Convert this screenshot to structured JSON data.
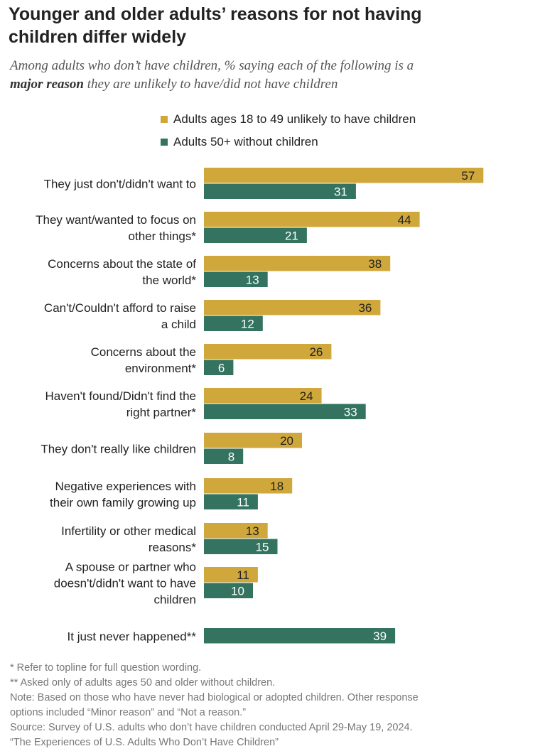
{
  "title_line1": "Younger and older adults’ reasons for not having",
  "title_line2": "children differ widely",
  "subtitle_part1": "Among adults who don’t have children, % saying each of the following is a",
  "subtitle_bold": "major reason",
  "subtitle_part2": "they are unlikely to have/did not have children",
  "colors": {
    "younger": "#CFA73B",
    "older": "#33735F",
    "label_on_younger": "#222222",
    "label_on_older": "#ffffff"
  },
  "chart_data": {
    "type": "bar",
    "orientation": "horizontal",
    "categories": [
      [
        "They just don't/didn't want to"
      ],
      [
        "They want/wanted to focus on",
        "other things*"
      ],
      [
        "Concerns about the state of",
        "the world*"
      ],
      [
        "Can't/Couldn't afford to raise",
        "a child"
      ],
      [
        "Concerns about the",
        "environment*"
      ],
      [
        "Haven't found/Didn't find the",
        "right partner*"
      ],
      [
        "They don't really like children"
      ],
      [
        "Negative experiences with",
        "their own family growing up"
      ],
      [
        "Infertility or other medical",
        "reasons*"
      ],
      [
        "A spouse or partner who",
        "doesn't/didn't want to have",
        "children"
      ],
      [
        "It just never happened**"
      ]
    ],
    "series": [
      {
        "name": "Adults ages 18 to 49 unlikely to have children",
        "values": [
          57,
          44,
          38,
          36,
          26,
          24,
          20,
          18,
          13,
          11,
          null
        ]
      },
      {
        "name": "Adults 50+ without children",
        "values": [
          31,
          21,
          13,
          12,
          6,
          33,
          8,
          11,
          15,
          10,
          39
        ]
      }
    ],
    "xlim": [
      0,
      57
    ],
    "grid": false,
    "legend_position": "top"
  },
  "notes": [
    "* Refer to topline for full question wording.",
    "** Asked only of adults ages 50 and older without children.",
    "Note: Based on those who have never had biological or adopted children. Other response",
    "options included “Minor reason” and “Not a reason.”",
    "Source: Survey of U.S. adults who don’t have children conducted April 29-May 19, 2024.",
    "“The Experiences of U.S. Adults Who Don’t Have Children”"
  ]
}
